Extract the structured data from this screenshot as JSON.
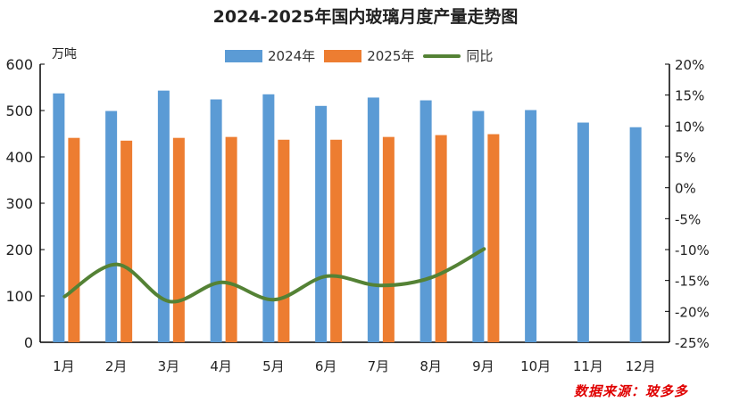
{
  "chart_data": {
    "type": "bar",
    "title": "2024-2025年国内玻璃月度产量走势图",
    "ylabel": "万吨",
    "categories": [
      "1月",
      "2月",
      "3月",
      "4月",
      "5月",
      "6月",
      "7月",
      "8月",
      "9月",
      "10月",
      "11月",
      "12月"
    ],
    "ylim": [
      0,
      600
    ],
    "yticks": [
      0,
      100,
      200,
      300,
      400,
      500,
      600
    ],
    "y2lim": [
      -25,
      20
    ],
    "y2ticks": [
      "-25%",
      "-20%",
      "-15%",
      "-10%",
      "-5%",
      "0%",
      "5%",
      "10%",
      "15%",
      "20%"
    ],
    "legend": "top",
    "grid": false,
    "series": [
      {
        "name": "2024年",
        "type": "bar",
        "color": "#5b9bd5",
        "values": [
          537,
          499,
          543,
          524,
          535,
          510,
          528,
          522,
          499,
          501,
          474,
          464
        ]
      },
      {
        "name": "2025年",
        "type": "bar",
        "color": "#ed7d31",
        "values": [
          441,
          435,
          441,
          443,
          437,
          437,
          443,
          447,
          449,
          null,
          null,
          null
        ]
      },
      {
        "name": "同比",
        "type": "line",
        "axis": "right",
        "unit": "%",
        "color": "#548235",
        "values": [
          -17.6,
          -12.4,
          -18.4,
          -15.3,
          -18.1,
          -14.3,
          -15.8,
          -14.5,
          -9.9,
          null,
          null,
          null
        ]
      }
    ]
  },
  "source": "数据来源：玻多多"
}
